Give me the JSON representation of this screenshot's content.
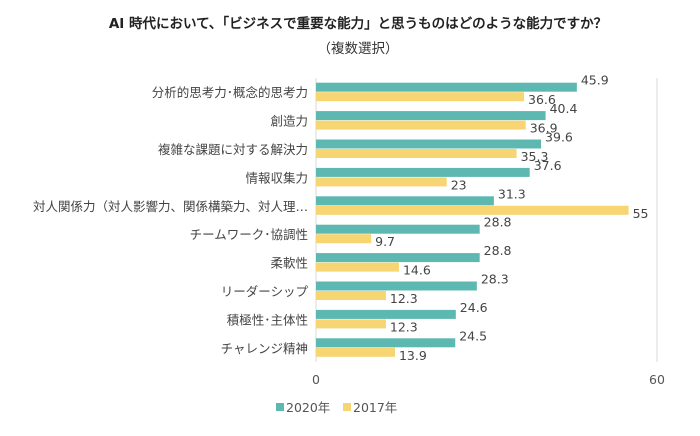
{
  "chart_data": {
    "type": "bar",
    "orientation": "horizontal",
    "title": "AI 時代において、「ビジネスで重要な能力」と思うものはどのような能力ですか？",
    "subtitle": "（複数選択）",
    "categories": [
      "分析的思考力･概念的思考力",
      "創造力",
      "複雑な課題に対する解決力",
      "情報収集力",
      "対人関係力（対人影響力、関係構築力、対人理…",
      "チームワーク･協調性",
      "柔軟性",
      "リーダーシップ",
      "積極性･主体性",
      "チャレンジ精神"
    ],
    "series": [
      {
        "name": "2020年",
        "color": "#5cb8b0",
        "values": [
          45.9,
          40.4,
          39.6,
          37.6,
          31.3,
          28.8,
          28.8,
          28.3,
          24.6,
          24.5
        ]
      },
      {
        "name": "2017年",
        "color": "#f6d572",
        "values": [
          36.6,
          36.9,
          35.3,
          23.0,
          55.0,
          9.7,
          14.6,
          12.3,
          12.3,
          13.9
        ]
      }
    ],
    "xlim": [
      0,
      60
    ],
    "xticks": [
      "0",
      "60"
    ],
    "grid": true,
    "legend": "bottom",
    "data_labels": true
  }
}
